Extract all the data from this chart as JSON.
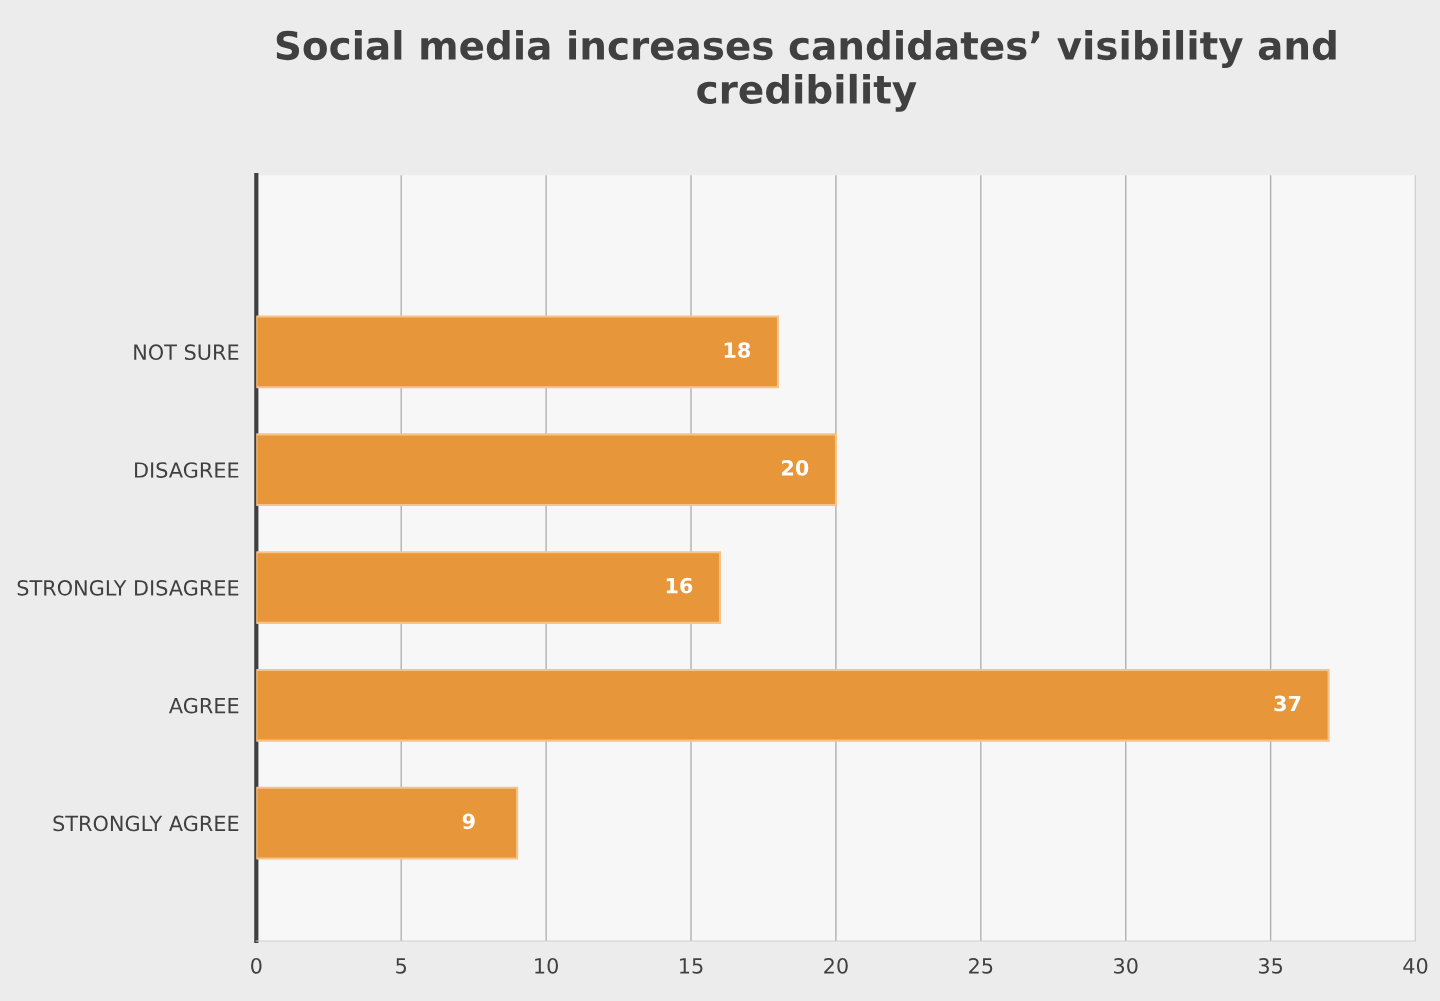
{
  "chart_data": {
    "type": "bar",
    "orientation": "horizontal",
    "title": "Social media increases candidates’ visibility and credibility",
    "categories": [
      "NOT SURE",
      "DISAGREE",
      "STRONGLY DISAGREE",
      "AGREE",
      "STRONGLY AGREE"
    ],
    "values": [
      18,
      20,
      16,
      37,
      9
    ],
    "color": "#e8963a",
    "data_labels": true,
    "xlim": [
      0,
      40
    ],
    "xticks": [
      0,
      5,
      10,
      15,
      20,
      25,
      30,
      35,
      40
    ],
    "grid": "x"
  }
}
